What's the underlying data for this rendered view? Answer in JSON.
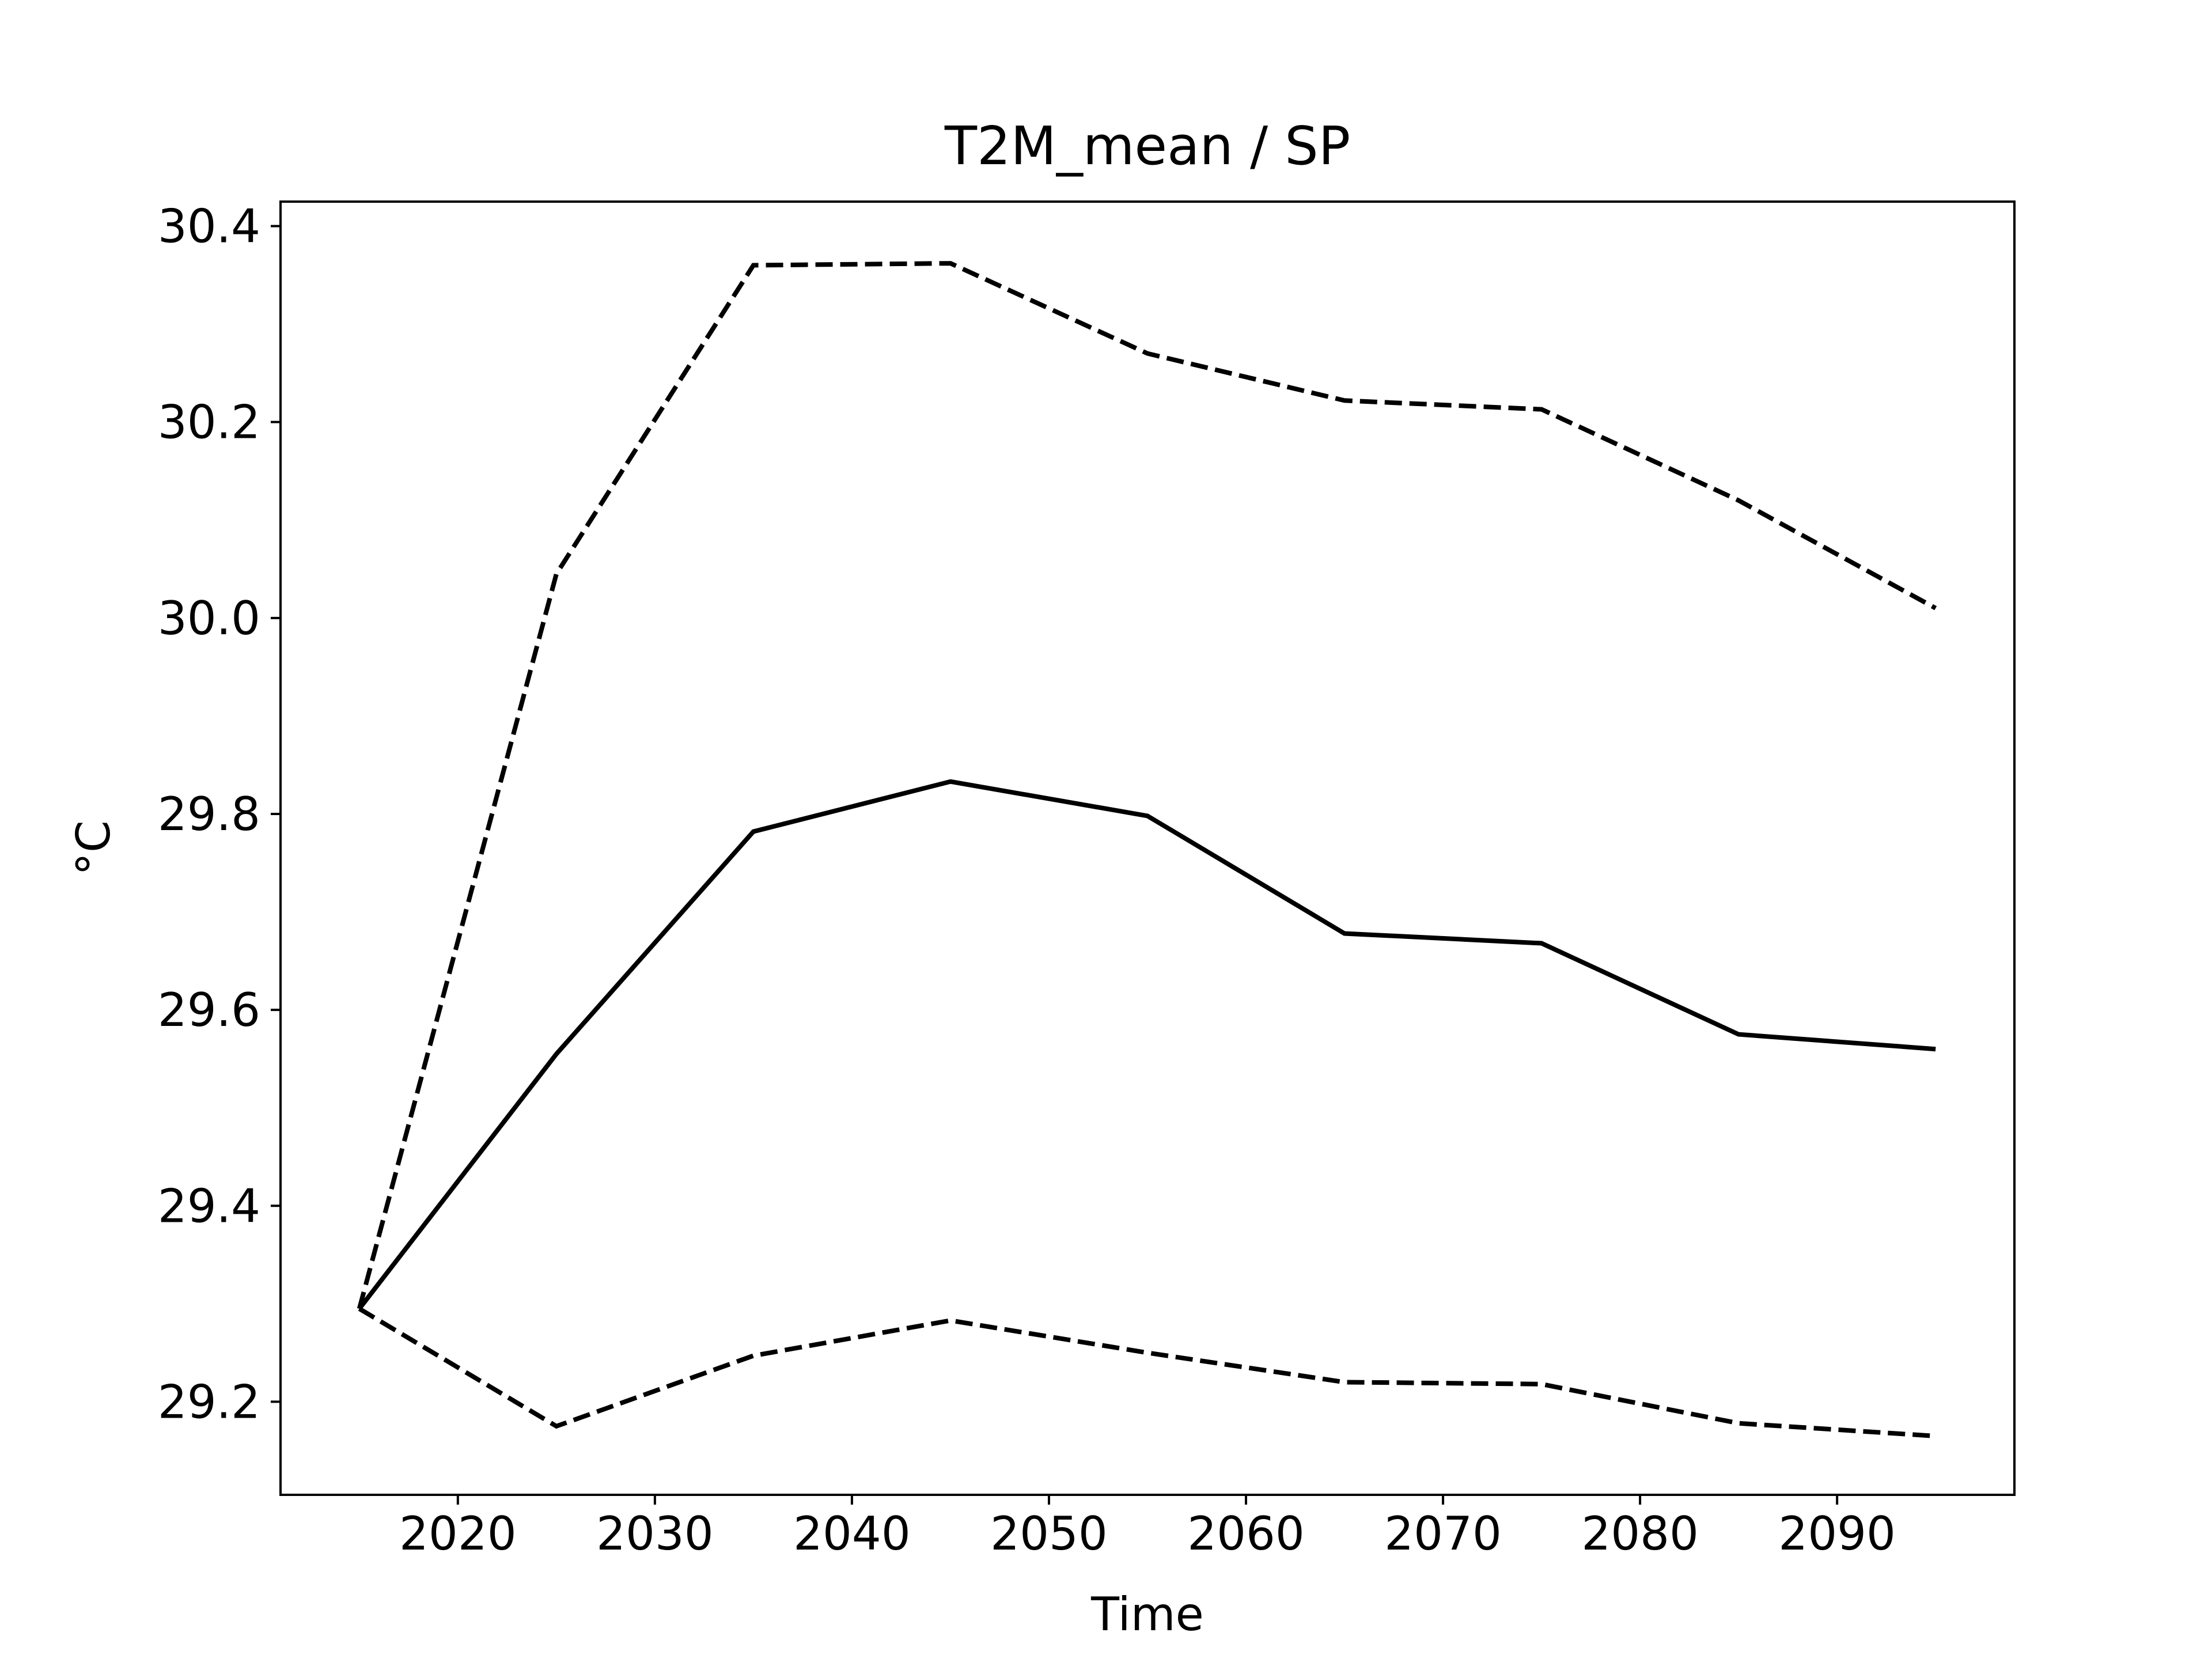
{
  "chart_data": {
    "type": "line",
    "title": "T2M_mean / SP",
    "xlabel": "Time",
    "ylabel": "°C",
    "xlim": [
      2011,
      2099
    ],
    "ylim": [
      29.105,
      30.425
    ],
    "xticks": [
      2020,
      2030,
      2040,
      2050,
      2060,
      2070,
      2080,
      2090
    ],
    "yticks": [
      29.2,
      29.4,
      29.6,
      29.8,
      30.0,
      30.2,
      30.4
    ],
    "ytick_labels": [
      "29.2",
      "29.4",
      "29.6",
      "29.8",
      "30.0",
      "30.2",
      "30.4"
    ],
    "grid": false,
    "legend": "none",
    "x": [
      2015,
      2025,
      2035,
      2045,
      2055,
      2065,
      2075,
      2085,
      2095
    ],
    "series": [
      {
        "style": "dashed",
        "color": "#000000",
        "values": [
          29.295,
          30.045,
          30.36,
          30.362,
          30.27,
          30.222,
          30.213,
          30.12,
          30.01
        ]
      },
      {
        "style": "solid",
        "color": "#000000",
        "values": [
          29.295,
          29.555,
          29.782,
          29.833,
          29.798,
          29.678,
          29.668,
          29.575,
          29.56
        ]
      },
      {
        "style": "dashed",
        "color": "#000000",
        "values": [
          29.295,
          29.175,
          29.247,
          29.283,
          29.25,
          29.22,
          29.218,
          29.178,
          29.165
        ]
      }
    ]
  }
}
